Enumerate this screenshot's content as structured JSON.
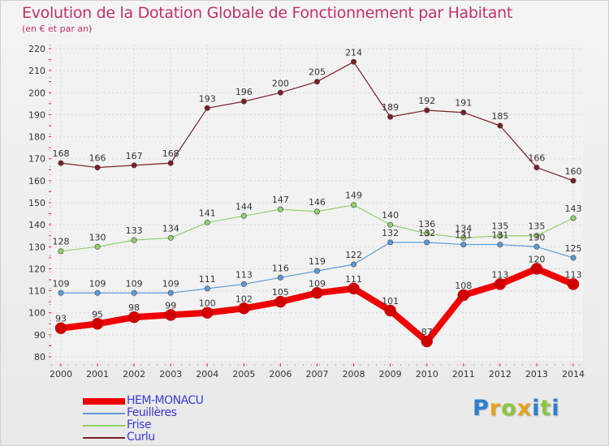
{
  "title": "Evolution de la Dotation Globale de Fonctionnement par Habitant",
  "subtitle": "(en € et par an)",
  "logo": {
    "letters": [
      "P",
      "r",
      "o",
      "x",
      "i",
      "t",
      "i"
    ],
    "colors": [
      "#2f7fd0",
      "#e8a31a",
      "#8cc63f",
      "#e8a31a",
      "#2f7fd0",
      "#8cc63f",
      "#2f7fd0"
    ]
  },
  "chart_data": {
    "type": "line",
    "title": "Evolution de la Dotation Globale de Fonctionnement par Habitant",
    "subtitle": "(en € et par an)",
    "xlabel": "",
    "ylabel": "",
    "ylim": [
      80,
      220
    ],
    "yticks": [
      80,
      90,
      100,
      110,
      120,
      130,
      140,
      150,
      160,
      170,
      180,
      190,
      200,
      210,
      220
    ],
    "grid": true,
    "legend": "bottom-left",
    "x": [
      "2000",
      "2001",
      "2002",
      "2003",
      "2004",
      "2005",
      "2006",
      "2007",
      "2008",
      "2009",
      "2010",
      "2011",
      "2012",
      "2013",
      "2014"
    ],
    "series": [
      {
        "name": "Curlu",
        "color": "#7a1f27",
        "width": 1.2,
        "marker": 3.2,
        "values": [
          168,
          166,
          167,
          168,
          193,
          196,
          200,
          205,
          214,
          189,
          192,
          191,
          185,
          166,
          160
        ]
      },
      {
        "name": "Frise",
        "color": "#8fd16a",
        "width": 1.2,
        "marker": 3.2,
        "values": [
          128,
          130,
          133,
          134,
          141,
          144,
          147,
          146,
          149,
          140,
          136,
          134,
          135,
          135,
          143
        ]
      },
      {
        "name": "Feuillères",
        "color": "#5b9ad6",
        "width": 1.2,
        "marker": 3.2,
        "values": [
          109,
          109,
          109,
          109,
          111,
          113,
          116,
          119,
          122,
          132,
          132,
          131,
          131,
          130,
          125
        ]
      },
      {
        "name": "HEM-MONACU",
        "color": "#ee0000",
        "width": 8,
        "marker": 7,
        "values": [
          93,
          95,
          98,
          99,
          100,
          102,
          105,
          109,
          111,
          101,
          87,
          108,
          113,
          120,
          113
        ]
      }
    ],
    "legend_order": [
      "HEM-MONACU",
      "Feuillères",
      "Frise",
      "Curlu"
    ]
  }
}
